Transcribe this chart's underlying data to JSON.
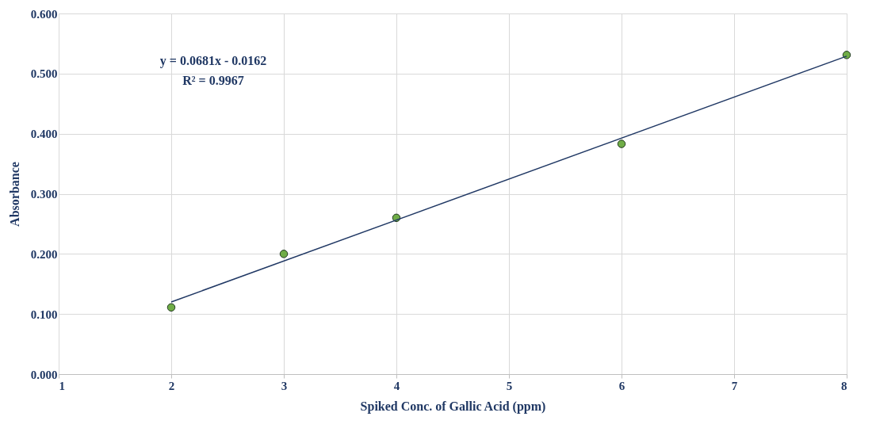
{
  "chart_data": {
    "type": "scatter",
    "xlabel": "Spiked Conc. of Gallic Acid  (ppm)",
    "ylabel": "Absorbance",
    "xlim": [
      1,
      8
    ],
    "xticks": [
      1,
      2,
      3,
      4,
      5,
      6,
      7,
      8
    ],
    "ylim": [
      0,
      0.6
    ],
    "yticks": [
      {
        "value": 0,
        "label": "0.000"
      },
      {
        "value": 0.1,
        "label": "0.100"
      },
      {
        "value": 0.2,
        "label": "0.200"
      },
      {
        "value": 0.3,
        "label": "0.300"
      },
      {
        "value": 0.4,
        "label": "0.400"
      },
      {
        "value": 0.5,
        "label": "0.500"
      },
      {
        "value": 0.6,
        "label": "0.600"
      }
    ],
    "grid": true,
    "marker": "circle",
    "series": [
      {
        "color": "#70ad47",
        "x": [
          2,
          3,
          4,
          6,
          8
        ],
        "values": [
          0.111,
          0.2,
          0.26,
          0.383,
          0.531
        ]
      },
      {
        "type": "line",
        "color": "#203864",
        "x": [
          2,
          8
        ],
        "values": [
          0.12,
          0.529
        ],
        "line_style": "solid",
        "marker": "none"
      }
    ],
    "annotations": [
      "y = 0.0681x - 0.0162",
      "R² = 0.9967"
    ]
  }
}
